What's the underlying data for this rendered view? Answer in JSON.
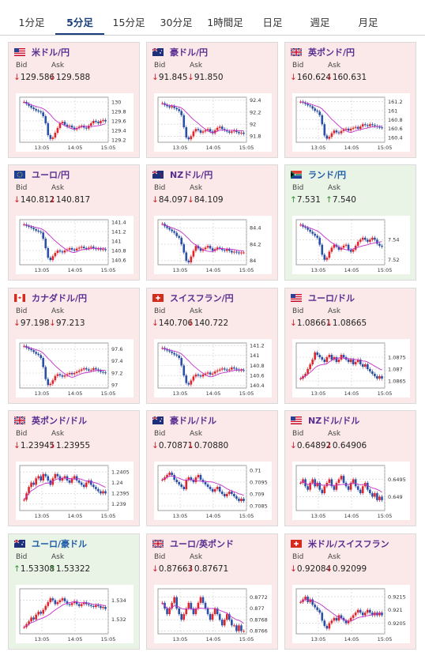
{
  "tabs": [
    {
      "label": "1分足",
      "active": false
    },
    {
      "label": "5分足",
      "active": true
    },
    {
      "label": "15分足",
      "active": false
    },
    {
      "label": "30分足",
      "active": false
    },
    {
      "label": "1時間足",
      "active": false
    },
    {
      "label": "日足",
      "active": false
    },
    {
      "label": "週足",
      "active": false
    },
    {
      "label": "月足",
      "active": false
    }
  ],
  "labels": {
    "bid": "Bid",
    "ask": "Ask"
  },
  "colors": {
    "down": "#d0202a",
    "up": "#2f8f2f",
    "candle_up": "#e0242a",
    "candle_down": "#2a4fa8",
    "ma": "#c230c8"
  },
  "cards": [
    {
      "pair": "米ドル/円",
      "flag": "us",
      "bid": "129.586",
      "ask": "129.588",
      "bid_dir": "down",
      "ask_dir": "down",
      "chart_data": {
        "type": "candlestick",
        "x_ticks": [
          "13:05",
          "14:05",
          "15:05"
        ],
        "y_ticks": [
          "130",
          "129.8",
          "129.6",
          "129.4",
          "129.2"
        ],
        "ylim": [
          129.15,
          130.1
        ],
        "closes": [
          130.0,
          129.96,
          129.92,
          129.88,
          129.85,
          129.82,
          129.8,
          129.78,
          129.7,
          129.55,
          129.3,
          129.22,
          129.25,
          129.35,
          129.45,
          129.55,
          129.58,
          129.52,
          129.48,
          129.5,
          129.46,
          129.42,
          129.45,
          129.48,
          129.5,
          129.46,
          129.44,
          129.5,
          129.55,
          129.6,
          129.58,
          129.55,
          129.6,
          129.62,
          129.59
        ]
      }
    },
    {
      "pair": "豪ドル/円",
      "flag": "au",
      "bid": "91.845",
      "ask": "91.850",
      "bid_dir": "down",
      "ask_dir": "down",
      "chart_data": {
        "type": "candlestick",
        "x_ticks": [
          "13:05",
          "14:05",
          "15:05"
        ],
        "y_ticks": [
          "92.4",
          "92.2",
          "92",
          "91.8"
        ],
        "ylim": [
          91.7,
          92.45
        ],
        "closes": [
          92.35,
          92.32,
          92.3,
          92.28,
          92.3,
          92.27,
          92.25,
          92.22,
          92.15,
          91.95,
          91.78,
          91.75,
          91.8,
          91.88,
          91.92,
          91.9,
          91.86,
          91.88,
          91.9,
          91.92,
          91.88,
          91.85,
          91.9,
          91.94,
          91.96,
          91.92,
          91.9,
          91.88,
          91.86,
          91.88,
          91.9,
          91.87,
          91.85,
          91.86,
          91.84
        ]
      }
    },
    {
      "pair": "英ポンド/円",
      "flag": "uk",
      "bid": "160.624",
      "ask": "160.631",
      "bid_dir": "down",
      "ask_dir": "down",
      "chart_data": {
        "type": "candlestick",
        "x_ticks": [
          "13:05",
          "14:05",
          "15:05"
        ],
        "y_ticks": [
          "161.2",
          "161",
          "160.8",
          "160.6",
          "160.4"
        ],
        "ylim": [
          160.3,
          161.3
        ],
        "closes": [
          161.2,
          161.18,
          161.15,
          161.12,
          161.1,
          161.05,
          161.0,
          160.98,
          160.9,
          160.7,
          160.45,
          160.38,
          160.42,
          160.5,
          160.56,
          160.52,
          160.5,
          160.55,
          160.58,
          160.6,
          160.56,
          160.6,
          160.62,
          160.64,
          160.6,
          160.65,
          160.7,
          160.68,
          160.66,
          160.7,
          160.68,
          160.66,
          160.64,
          160.63,
          160.62
        ]
      }
    },
    {
      "pair": "ユーロ/円",
      "flag": "eu",
      "bid": "140.812",
      "ask": "140.817",
      "bid_dir": "down",
      "ask_dir": "down",
      "chart_data": {
        "type": "candlestick",
        "x_ticks": [
          "13:05",
          "14:05",
          "15:05"
        ],
        "y_ticks": [
          "141.4",
          "141.2",
          "141",
          "140.8",
          "140.6"
        ],
        "ylim": [
          140.5,
          141.45
        ],
        "closes": [
          141.35,
          141.32,
          141.3,
          141.28,
          141.25,
          141.22,
          141.2,
          141.18,
          141.05,
          140.85,
          140.65,
          140.6,
          140.68,
          140.75,
          140.8,
          140.78,
          140.76,
          140.8,
          140.82,
          140.85,
          140.82,
          140.8,
          140.84,
          140.86,
          140.88,
          140.85,
          140.84,
          140.86,
          140.88,
          140.85,
          140.83,
          140.84,
          140.82,
          140.83,
          140.81
        ]
      }
    },
    {
      "pair": "NZドル/円",
      "flag": "nz",
      "bid": "84.097",
      "ask": "84.109",
      "bid_dir": "down",
      "ask_dir": "down",
      "chart_data": {
        "type": "candlestick",
        "x_ticks": [
          "13:05",
          "14:05",
          "15:05"
        ],
        "y_ticks": [
          "84.4",
          "84.2",
          "84"
        ],
        "ylim": [
          83.95,
          84.5
        ],
        "closes": [
          84.45,
          84.42,
          84.4,
          84.38,
          84.36,
          84.34,
          84.3,
          84.28,
          84.2,
          84.1,
          84.0,
          83.98,
          84.05,
          84.12,
          84.18,
          84.15,
          84.12,
          84.14,
          84.16,
          84.18,
          84.15,
          84.12,
          84.14,
          84.16,
          84.15,
          84.13,
          84.12,
          84.14,
          84.12,
          84.1,
          84.11,
          84.1,
          84.09,
          84.1,
          84.1
        ]
      }
    },
    {
      "pair": "ランド/円",
      "flag": "za",
      "bid": "7.531",
      "ask": "7.540",
      "bid_dir": "up",
      "ask_dir": "up",
      "chart_data": {
        "type": "candlestick",
        "x_ticks": [
          "13:05",
          "14:05",
          "15:05"
        ],
        "y_ticks": [
          "7.54",
          "7.52"
        ],
        "ylim": [
          7.515,
          7.56
        ],
        "closes": [
          7.555,
          7.553,
          7.552,
          7.55,
          7.548,
          7.546,
          7.544,
          7.542,
          7.535,
          7.525,
          7.52,
          7.522,
          7.528,
          7.532,
          7.535,
          7.533,
          7.53,
          7.532,
          7.534,
          7.535,
          7.53,
          7.528,
          7.53,
          7.534,
          7.538,
          7.54,
          7.542,
          7.54,
          7.538,
          7.54,
          7.542,
          7.54,
          7.536,
          7.534,
          7.533
        ]
      }
    },
    {
      "pair": "カナダドル/円",
      "flag": "ca",
      "bid": "97.198",
      "ask": "97.213",
      "bid_dir": "down",
      "ask_dir": "down",
      "chart_data": {
        "type": "candlestick",
        "x_ticks": [
          "13:05",
          "14:05",
          "15:05"
        ],
        "y_ticks": [
          "97.6",
          "97.4",
          "97.2",
          "97"
        ],
        "ylim": [
          96.95,
          97.7
        ],
        "closes": [
          97.65,
          97.62,
          97.6,
          97.58,
          97.55,
          97.52,
          97.5,
          97.45,
          97.3,
          97.1,
          97.0,
          97.02,
          97.08,
          97.15,
          97.18,
          97.16,
          97.14,
          97.16,
          97.18,
          97.2,
          97.18,
          97.2,
          97.22,
          97.24,
          97.26,
          97.28,
          97.26,
          97.24,
          97.25,
          97.28,
          97.26,
          97.24,
          97.22,
          97.21,
          97.2
        ]
      }
    },
    {
      "pair": "スイスフラン/円",
      "flag": "ch",
      "bid": "140.706",
      "ask": "140.722",
      "bid_dir": "down",
      "ask_dir": "down",
      "chart_data": {
        "type": "candlestick",
        "x_ticks": [
          "13:05",
          "14:05",
          "15:05"
        ],
        "y_ticks": [
          "141.2",
          "141",
          "140.8",
          "140.6",
          "140.4"
        ],
        "ylim": [
          140.35,
          141.25
        ],
        "closes": [
          141.15,
          141.12,
          141.1,
          141.08,
          141.05,
          141.02,
          141.0,
          140.95,
          140.8,
          140.6,
          140.45,
          140.42,
          140.5,
          140.58,
          140.62,
          140.6,
          140.58,
          140.62,
          140.64,
          140.66,
          140.62,
          140.64,
          140.68,
          140.7,
          140.72,
          140.74,
          140.72,
          140.7,
          140.72,
          140.76,
          140.74,
          140.72,
          140.7,
          140.71,
          140.7
        ]
      }
    },
    {
      "pair": "ユーロ/ドル",
      "flag": "us",
      "bid": "1.08661",
      "ask": "1.08665",
      "bid_dir": "down",
      "ask_dir": "down",
      "chart_data": {
        "type": "candlestick",
        "x_ticks": [
          "13:05",
          "14:05",
          "15:05"
        ],
        "y_ticks": [
          "1.0875",
          "1.087",
          "1.0865"
        ],
        "ylim": [
          1.0862,
          1.0881
        ],
        "closes": [
          1.0866,
          1.0867,
          1.0868,
          1.087,
          1.0872,
          1.0874,
          1.0877,
          1.0876,
          1.0875,
          1.0874,
          1.0873,
          1.0875,
          1.0876,
          1.0874,
          1.0875,
          1.0873,
          1.0874,
          1.0876,
          1.0875,
          1.0874,
          1.0873,
          1.0874,
          1.0872,
          1.0873,
          1.0874,
          1.0872,
          1.0871,
          1.0872,
          1.087,
          1.0869,
          1.0868,
          1.0867,
          1.0866,
          1.0867,
          1.0866
        ]
      }
    },
    {
      "pair": "英ポンド/ドル",
      "flag": "uk",
      "bid": "1.23945",
      "ask": "1.23955",
      "bid_dir": "down",
      "ask_dir": "down",
      "chart_data": {
        "type": "candlestick",
        "x_ticks": [
          "13:05",
          "14:05",
          "15:05"
        ],
        "y_ticks": [
          "1.2405",
          "1.24",
          "1.2395",
          "1.239"
        ],
        "ylim": [
          1.2387,
          1.2408
        ],
        "closes": [
          1.2392,
          1.2395,
          1.2398,
          1.24,
          1.2399,
          1.2402,
          1.2403,
          1.2401,
          1.2404,
          1.2403,
          1.2401,
          1.2399,
          1.2402,
          1.2404,
          1.2403,
          1.2401,
          1.2402,
          1.2403,
          1.2401,
          1.24,
          1.2402,
          1.2403,
          1.2401,
          1.24,
          1.2399,
          1.2398,
          1.24,
          1.2401,
          1.2399,
          1.2398,
          1.2397,
          1.2396,
          1.2395,
          1.2396,
          1.2395
        ]
      }
    },
    {
      "pair": "豪ドル/ドル",
      "flag": "au",
      "bid": "0.70871",
      "ask": "0.70880",
      "bid_dir": "down",
      "ask_dir": "down",
      "chart_data": {
        "type": "candlestick",
        "x_ticks": [
          "13:05",
          "14:05",
          "15:05"
        ],
        "y_ticks": [
          "0.71",
          "0.7095",
          "0.709",
          "0.7085"
        ],
        "ylim": [
          0.7083,
          0.7102
        ],
        "closes": [
          0.7096,
          0.7097,
          0.7098,
          0.7099,
          0.7098,
          0.7096,
          0.7095,
          0.7094,
          0.7093,
          0.7092,
          0.7096,
          0.7097,
          0.7096,
          0.7095,
          0.7097,
          0.7098,
          0.7096,
          0.7095,
          0.7094,
          0.7093,
          0.7092,
          0.7091,
          0.7092,
          0.7093,
          0.7091,
          0.709,
          0.7089,
          0.709,
          0.7091,
          0.709,
          0.7089,
          0.7088,
          0.7087,
          0.7088,
          0.7087
        ]
      }
    },
    {
      "pair": "NZドル/ドル",
      "flag": "us",
      "bid": "0.64892",
      "ask": "0.64906",
      "bid_dir": "down",
      "ask_dir": "down",
      "chart_data": {
        "type": "candlestick",
        "x_ticks": [
          "13:05",
          "14:05",
          "15:05"
        ],
        "y_ticks": [
          "0.6495",
          "0.649"
        ],
        "ylim": [
          0.6486,
          0.6499
        ],
        "closes": [
          0.6494,
          0.6495,
          0.6493,
          0.6492,
          0.6494,
          0.6495,
          0.6493,
          0.6494,
          0.6492,
          0.6491,
          0.6493,
          0.6494,
          0.6495,
          0.6493,
          0.6492,
          0.6494,
          0.6495,
          0.6496,
          0.6494,
          0.6493,
          0.6492,
          0.6494,
          0.6495,
          0.6493,
          0.6492,
          0.6491,
          0.6493,
          0.6494,
          0.6492,
          0.6491,
          0.649,
          0.6491,
          0.6489,
          0.649,
          0.6489
        ]
      }
    },
    {
      "pair": "ユーロ/豪ドル",
      "flag": "au",
      "bid": "1.53308",
      "ask": "1.53322",
      "bid_dir": "up",
      "ask_dir": "up",
      "chart_data": {
        "type": "candlestick",
        "x_ticks": [
          "13:05",
          "14:05",
          "15:05"
        ],
        "y_ticks": [
          "1.534",
          "1.532"
        ],
        "ylim": [
          1.5305,
          1.5352
        ],
        "closes": [
          1.5312,
          1.5315,
          1.5318,
          1.5322,
          1.532,
          1.5325,
          1.5328,
          1.5326,
          1.533,
          1.5334,
          1.5338,
          1.5342,
          1.534,
          1.5336,
          1.5338,
          1.534,
          1.5342,
          1.5339,
          1.5336,
          1.5335,
          1.5337,
          1.5339,
          1.5336,
          1.5334,
          1.5336,
          1.5338,
          1.5336,
          1.5335,
          1.5334,
          1.5333,
          1.5335,
          1.5334,
          1.5332,
          1.5333,
          1.5331
        ]
      }
    },
    {
      "pair": "ユーロ/英ポンド",
      "flag": "uk",
      "bid": "0.87663",
      "ask": "0.87671",
      "bid_dir": "down",
      "ask_dir": "down",
      "chart_data": {
        "type": "candlestick",
        "x_ticks": [
          "13:05",
          "14:05",
          "15:05"
        ],
        "y_ticks": [
          "0.8772",
          "0.877",
          "0.8768",
          "0.8766"
        ],
        "ylim": [
          0.87655,
          0.87735
        ],
        "closes": [
          0.8771,
          0.877,
          0.8769,
          0.877,
          0.8771,
          0.8772,
          0.877,
          0.8769,
          0.8768,
          0.8769,
          0.877,
          0.8771,
          0.877,
          0.8769,
          0.877,
          0.8771,
          0.8772,
          0.8771,
          0.877,
          0.8769,
          0.8768,
          0.8769,
          0.877,
          0.8769,
          0.8768,
          0.8767,
          0.8768,
          0.8769,
          0.8768,
          0.8767,
          0.8767,
          0.8766,
          0.8767,
          0.8766,
          0.8766
        ]
      }
    },
    {
      "pair": "米ドル/スイスフラン",
      "flag": "ch",
      "bid": "0.92084",
      "ask": "0.92099",
      "bid_dir": "down",
      "ask_dir": "down",
      "chart_data": {
        "type": "candlestick",
        "x_ticks": [
          "13:05",
          "14:05",
          "15:05"
        ],
        "y_ticks": [
          "0.9215",
          "0.921",
          "0.9205"
        ],
        "ylim": [
          0.9201,
          0.9218
        ],
        "closes": [
          0.9213,
          0.9214,
          0.9215,
          0.9213,
          0.9214,
          0.9212,
          0.9211,
          0.921,
          0.9209,
          0.9206,
          0.9204,
          0.9203,
          0.9205,
          0.9206,
          0.9207,
          0.9206,
          0.9208,
          0.9207,
          0.9206,
          0.9205,
          0.9206,
          0.9207,
          0.9208,
          0.9209,
          0.921,
          0.9209,
          0.9208,
          0.9209,
          0.921,
          0.9209,
          0.9208,
          0.9209,
          0.9208,
          0.9209,
          0.9208
        ]
      }
    }
  ]
}
